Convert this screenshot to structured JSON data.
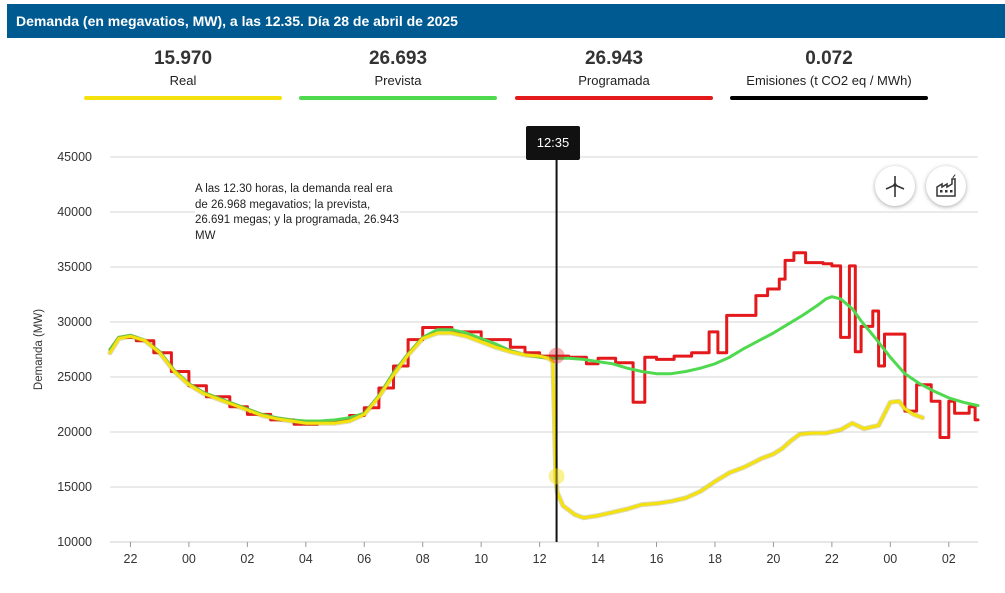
{
  "header": {
    "title": "Demanda (en megavatios, MW), a las 12.35. Día 28 de abril de 2025"
  },
  "summary": [
    {
      "value": "15.970",
      "label": "Real",
      "color": "#f5e20c"
    },
    {
      "value": "26.693",
      "label": "Prevista",
      "color": "#4fd94f"
    },
    {
      "value": "26.943",
      "label": "Programada",
      "color": "#e3191c"
    },
    {
      "value": "0.072",
      "label": "Emisiones (t CO2 eq / MWh)",
      "color": "#000000"
    }
  ],
  "cursor": {
    "label": "12:35",
    "time": 36.58
  },
  "annotation": {
    "text": "A las 12.30 horas, la demanda real era de 26.968 megavatios; la prevista, 26.691 megas; y la programada, 26.943 MW"
  },
  "icons": {
    "renewables": "wind-turbine-icon",
    "conventional": "factory-icon"
  },
  "chart_data": {
    "type": "line",
    "title": "",
    "xlabel": "",
    "ylabel": "Demanda (MW)",
    "x_unit": "hours since 00:00 on the day before",
    "xlim": [
      21.3,
      51.0
    ],
    "ylim": [
      10000,
      45000
    ],
    "yticks": [
      10000,
      15000,
      20000,
      25000,
      30000,
      35000,
      40000,
      45000
    ],
    "ytick_labels": [
      "10000",
      "15000",
      "20000",
      "25000",
      "30000",
      "35000",
      "40000",
      "45000"
    ],
    "xticks": [
      22,
      24,
      26,
      28,
      30,
      32,
      34,
      36,
      38,
      40,
      42,
      44,
      46,
      48,
      50
    ],
    "xtick_labels": [
      "22",
      "00",
      "02",
      "04",
      "06",
      "08",
      "10",
      "12",
      "14",
      "16",
      "18",
      "20",
      "22",
      "00",
      "02"
    ],
    "grid": true,
    "series": [
      {
        "name": "Real",
        "color": "#f5e20c",
        "points": [
          [
            21.3,
            27200
          ],
          [
            21.6,
            28500
          ],
          [
            22,
            28700
          ],
          [
            22.5,
            28300
          ],
          [
            23,
            27200
          ],
          [
            23.5,
            25500
          ],
          [
            24,
            24300
          ],
          [
            24.5,
            23500
          ],
          [
            25,
            23000
          ],
          [
            25.5,
            22500
          ],
          [
            26,
            22000
          ],
          [
            26.5,
            21500
          ],
          [
            27,
            21200
          ],
          [
            27.5,
            21000
          ],
          [
            28,
            20800
          ],
          [
            28.5,
            20800
          ],
          [
            29,
            20800
          ],
          [
            29.5,
            21000
          ],
          [
            30,
            21600
          ],
          [
            30.5,
            23200
          ],
          [
            31,
            25200
          ],
          [
            31.5,
            27000
          ],
          [
            32,
            28500
          ],
          [
            32.5,
            29000
          ],
          [
            33,
            29000
          ],
          [
            33.5,
            28700
          ],
          [
            34,
            28200
          ],
          [
            34.5,
            27700
          ],
          [
            35,
            27300
          ],
          [
            35.5,
            27000
          ],
          [
            36,
            26900
          ],
          [
            36.3,
            26700
          ],
          [
            36.45,
            26400
          ],
          [
            36.5,
            22000
          ],
          [
            36.55,
            15900
          ],
          [
            36.6,
            14500
          ],
          [
            36.8,
            13300
          ],
          [
            37.2,
            12500
          ],
          [
            37.5,
            12200
          ],
          [
            38,
            12400
          ],
          [
            38.5,
            12700
          ],
          [
            39,
            13000
          ],
          [
            39.5,
            13400
          ],
          [
            40,
            13500
          ],
          [
            40.5,
            13700
          ],
          [
            41,
            14000
          ],
          [
            41.5,
            14600
          ],
          [
            42,
            15500
          ],
          [
            42.5,
            16300
          ],
          [
            43,
            16800
          ],
          [
            43.3,
            17200
          ],
          [
            43.6,
            17600
          ],
          [
            44,
            18000
          ],
          [
            44.3,
            18500
          ],
          [
            44.6,
            19200
          ],
          [
            44.9,
            19800
          ],
          [
            45.3,
            19900
          ],
          [
            45.8,
            19900
          ],
          [
            46.3,
            20200
          ],
          [
            46.7,
            20800
          ],
          [
            47.1,
            20300
          ],
          [
            47.6,
            20600
          ],
          [
            48,
            22700
          ],
          [
            48.3,
            22800
          ],
          [
            48.5,
            22100
          ],
          [
            48.8,
            21600
          ],
          [
            49.1,
            21300
          ]
        ]
      },
      {
        "name": "Prevista",
        "color": "#4fd94f",
        "points": [
          [
            21.3,
            27500
          ],
          [
            21.6,
            28600
          ],
          [
            22,
            28800
          ],
          [
            22.5,
            28300
          ],
          [
            23,
            27300
          ],
          [
            23.5,
            25600
          ],
          [
            24,
            24400
          ],
          [
            24.5,
            23600
          ],
          [
            25,
            23100
          ],
          [
            25.5,
            22600
          ],
          [
            26,
            22100
          ],
          [
            26.5,
            21600
          ],
          [
            27,
            21300
          ],
          [
            27.5,
            21100
          ],
          [
            28,
            21000
          ],
          [
            28.5,
            21000
          ],
          [
            29,
            21100
          ],
          [
            29.5,
            21300
          ],
          [
            30,
            21700
          ],
          [
            30.5,
            23300
          ],
          [
            31,
            25400
          ],
          [
            31.5,
            27100
          ],
          [
            32,
            28600
          ],
          [
            32.5,
            29300
          ],
          [
            33,
            29300
          ],
          [
            33.5,
            29000
          ],
          [
            34,
            28500
          ],
          [
            34.5,
            28000
          ],
          [
            35,
            27400
          ],
          [
            35.5,
            27000
          ],
          [
            36,
            26800
          ],
          [
            36.5,
            26700
          ],
          [
            37,
            26700
          ],
          [
            37.5,
            26600
          ],
          [
            38,
            26400
          ],
          [
            38.5,
            26200
          ],
          [
            39,
            25800
          ],
          [
            39.5,
            25500
          ],
          [
            40,
            25300
          ],
          [
            40.5,
            25300
          ],
          [
            41,
            25500
          ],
          [
            41.5,
            25800
          ],
          [
            42,
            26200
          ],
          [
            42.5,
            26800
          ],
          [
            43,
            27600
          ],
          [
            43.5,
            28300
          ],
          [
            44,
            29000
          ],
          [
            44.5,
            29800
          ],
          [
            45,
            30600
          ],
          [
            45.5,
            31500
          ],
          [
            45.8,
            32100
          ],
          [
            46,
            32300
          ],
          [
            46.3,
            32100
          ],
          [
            46.7,
            31200
          ],
          [
            47,
            30100
          ],
          [
            47.5,
            28500
          ],
          [
            48,
            26800
          ],
          [
            48.5,
            25300
          ],
          [
            49,
            24400
          ],
          [
            49.5,
            23700
          ],
          [
            50,
            23100
          ],
          [
            50.5,
            22700
          ],
          [
            51,
            22400
          ]
        ]
      },
      {
        "name": "Programada",
        "color": "#e3191c",
        "points": [
          [
            21.3,
            27500
          ],
          [
            21.6,
            28600
          ],
          [
            22.2,
            28600
          ],
          [
            22.2,
            28300
          ],
          [
            22.8,
            28300
          ],
          [
            22.8,
            27200
          ],
          [
            23.4,
            27200
          ],
          [
            23.4,
            25500
          ],
          [
            24,
            25500
          ],
          [
            24,
            24200
          ],
          [
            24.6,
            24200
          ],
          [
            24.6,
            23200
          ],
          [
            25.4,
            23200
          ],
          [
            25.4,
            22300
          ],
          [
            26,
            22300
          ],
          [
            26,
            21600
          ],
          [
            26.8,
            21600
          ],
          [
            26.8,
            21100
          ],
          [
            27.6,
            21100
          ],
          [
            27.6,
            20700
          ],
          [
            28.4,
            20700
          ],
          [
            28.4,
            20900
          ],
          [
            29,
            20900
          ],
          [
            29,
            21000
          ],
          [
            29.5,
            21000
          ],
          [
            29.5,
            21500
          ],
          [
            30,
            21500
          ],
          [
            30,
            22200
          ],
          [
            30.5,
            22200
          ],
          [
            30.5,
            24000
          ],
          [
            31,
            24000
          ],
          [
            31,
            26000
          ],
          [
            31.5,
            26000
          ],
          [
            31.5,
            28400
          ],
          [
            32,
            28400
          ],
          [
            32,
            29500
          ],
          [
            33,
            29500
          ],
          [
            33,
            29100
          ],
          [
            34,
            29100
          ],
          [
            34,
            28400
          ],
          [
            35,
            28400
          ],
          [
            35,
            27700
          ],
          [
            35.5,
            27700
          ],
          [
            35.5,
            27200
          ],
          [
            36,
            27200
          ],
          [
            36,
            26900
          ],
          [
            36.5,
            26900
          ],
          [
            37,
            26900
          ],
          [
            37,
            26800
          ],
          [
            37.6,
            26800
          ],
          [
            37.6,
            26200
          ],
          [
            38,
            26200
          ],
          [
            38,
            26700
          ],
          [
            38.6,
            26700
          ],
          [
            38.6,
            26300
          ],
          [
            39.2,
            26300
          ],
          [
            39.2,
            22700
          ],
          [
            39.6,
            22700
          ],
          [
            39.6,
            26800
          ],
          [
            40,
            26800
          ],
          [
            40,
            26600
          ],
          [
            40.6,
            26600
          ],
          [
            40.6,
            26900
          ],
          [
            41.2,
            26900
          ],
          [
            41.2,
            27200
          ],
          [
            41.8,
            27200
          ],
          [
            41.8,
            29100
          ],
          [
            42.1,
            29100
          ],
          [
            42.1,
            27200
          ],
          [
            42.4,
            27200
          ],
          [
            42.4,
            30600
          ],
          [
            43.4,
            30600
          ],
          [
            43.4,
            32400
          ],
          [
            43.8,
            32400
          ],
          [
            43.8,
            33000
          ],
          [
            44.2,
            33000
          ],
          [
            44.2,
            33900
          ],
          [
            44.4,
            33900
          ],
          [
            44.4,
            35600
          ],
          [
            44.7,
            35600
          ],
          [
            44.7,
            36300
          ],
          [
            45.1,
            36300
          ],
          [
            45.1,
            35400
          ],
          [
            45.7,
            35400
          ],
          [
            45.7,
            35300
          ],
          [
            46,
            35300
          ],
          [
            46,
            35100
          ],
          [
            46.3,
            35100
          ],
          [
            46.3,
            28600
          ],
          [
            46.6,
            28600
          ],
          [
            46.6,
            35100
          ],
          [
            46.8,
            35100
          ],
          [
            46.8,
            27300
          ],
          [
            47,
            27300
          ],
          [
            47,
            29600
          ],
          [
            47.4,
            29600
          ],
          [
            47.4,
            31000
          ],
          [
            47.6,
            31000
          ],
          [
            47.6,
            26000
          ],
          [
            47.8,
            26000
          ],
          [
            47.8,
            28900
          ],
          [
            48.5,
            28900
          ],
          [
            48.5,
            21900
          ],
          [
            48.9,
            21900
          ],
          [
            48.9,
            24300
          ],
          [
            49.4,
            24300
          ],
          [
            49.4,
            22800
          ],
          [
            49.7,
            22800
          ],
          [
            49.7,
            19500
          ],
          [
            50,
            19500
          ],
          [
            50,
            22800
          ],
          [
            50.2,
            22800
          ],
          [
            50.2,
            21700
          ],
          [
            50.7,
            21700
          ],
          [
            50.7,
            22300
          ],
          [
            50.9,
            22300
          ],
          [
            50.9,
            21100
          ],
          [
            51,
            21100
          ]
        ]
      }
    ]
  }
}
